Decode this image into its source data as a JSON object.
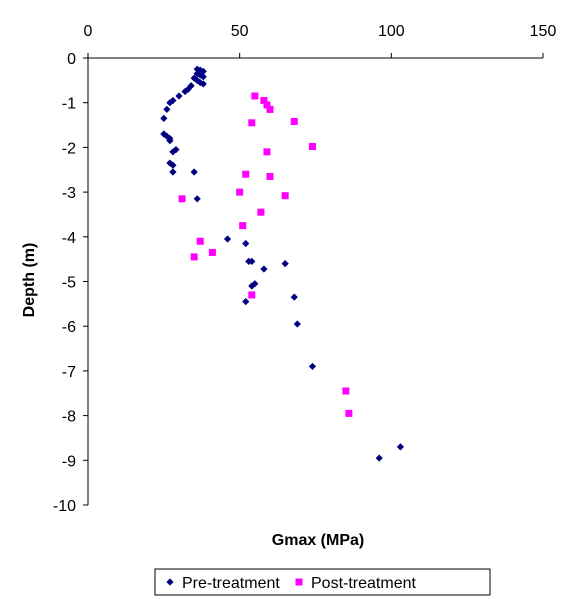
{
  "chart_data": {
    "type": "scatter",
    "title": "",
    "xlabel": "Gmax (MPa)",
    "ylabel": "Depth (m)",
    "xlim": [
      0,
      150
    ],
    "ylim": [
      -10,
      0
    ],
    "x_ticks": [
      0,
      50,
      100,
      150
    ],
    "y_ticks": [
      0,
      -1,
      -2,
      -3,
      -4,
      -5,
      -6,
      -7,
      -8,
      -9,
      -10
    ],
    "x_axis_position": "top",
    "grid": false,
    "legend_position": "bottom",
    "series": [
      {
        "name": "Pre-treatment",
        "color": "#000080",
        "marker": "diamond",
        "x": [
          36,
          37,
          38,
          36,
          37,
          38,
          35,
          36,
          37,
          38,
          34,
          33,
          32,
          30,
          28,
          27,
          26,
          25,
          25,
          26,
          27,
          27,
          29,
          28,
          27,
          28,
          28,
          35,
          36,
          46,
          52,
          65,
          53,
          54,
          58,
          55,
          54,
          52,
          68,
          69,
          74,
          103,
          96
        ],
        "y": [
          -0.25,
          -0.27,
          -0.3,
          -0.35,
          -0.38,
          -0.42,
          -0.45,
          -0.5,
          -0.55,
          -0.58,
          -0.62,
          -0.7,
          -0.75,
          -0.85,
          -0.95,
          -1.0,
          -1.15,
          -1.35,
          -1.7,
          -1.75,
          -1.8,
          -1.85,
          -2.05,
          -2.1,
          -2.35,
          -2.4,
          -2.55,
          -2.55,
          -3.15,
          -4.05,
          -4.15,
          -4.6,
          -4.55,
          -4.55,
          -4.72,
          -5.05,
          -5.1,
          -5.45,
          -5.35,
          -5.95,
          -6.9,
          -8.7,
          -8.95
        ]
      },
      {
        "name": "Post-treatment",
        "color": "#FF00FF",
        "marker": "square",
        "x": [
          55,
          58,
          59,
          60,
          54,
          68,
          74,
          59,
          52,
          60,
          50,
          65,
          31,
          57,
          51,
          37,
          41,
          35,
          54,
          85,
          86
        ],
        "y": [
          -0.85,
          -0.95,
          -1.05,
          -1.15,
          -1.45,
          -1.42,
          -1.98,
          -2.1,
          -2.6,
          -2.65,
          -3.0,
          -3.08,
          -3.15,
          -3.45,
          -3.75,
          -4.1,
          -4.35,
          -4.45,
          -5.3,
          -7.45,
          -7.95
        ]
      }
    ]
  }
}
